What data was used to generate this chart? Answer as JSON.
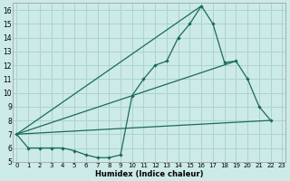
{
  "title": "",
  "xlabel": "Humidex (Indice chaleur)",
  "bg_color": "#cceae7",
  "grid_color": "#aad4d0",
  "line_color": "#1a6b5a",
  "x_values": [
    0,
    1,
    2,
    3,
    4,
    5,
    6,
    7,
    8,
    9,
    10,
    11,
    12,
    13,
    14,
    15,
    16,
    17,
    18,
    19,
    20,
    21,
    22
  ],
  "series1": [
    7.0,
    6.0,
    6.0,
    6.0,
    6.0,
    5.8,
    5.5,
    5.3,
    5.3,
    5.5,
    9.8,
    11.0,
    12.0,
    12.3,
    14.0,
    15.0,
    16.3,
    15.0,
    12.2,
    12.3,
    11.0,
    9.0,
    8.0
  ],
  "line1_x": [
    0,
    22
  ],
  "line1_y": [
    7.0,
    8.0
  ],
  "line2_x": [
    0,
    19
  ],
  "line2_y": [
    7.0,
    12.3
  ],
  "line3_x": [
    0,
    16
  ],
  "line3_y": [
    7.0,
    16.3
  ],
  "xlim": [
    -0.3,
    23.3
  ],
  "ylim": [
    5,
    16.5
  ],
  "yticks": [
    5,
    6,
    7,
    8,
    9,
    10,
    11,
    12,
    13,
    14,
    15,
    16
  ],
  "xticks": [
    0,
    1,
    2,
    3,
    4,
    5,
    6,
    7,
    8,
    9,
    10,
    11,
    12,
    13,
    14,
    15,
    16,
    17,
    18,
    19,
    20,
    21,
    22,
    23
  ]
}
